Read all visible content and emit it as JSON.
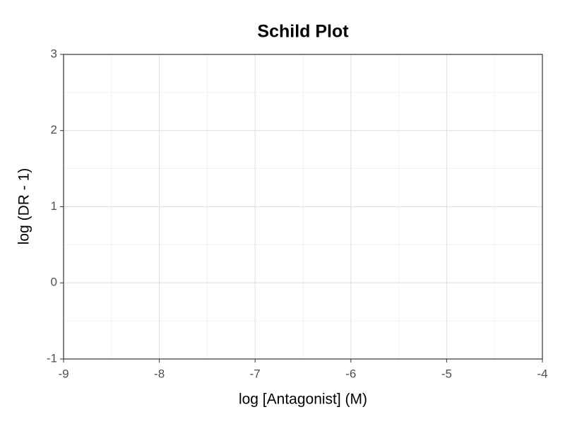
{
  "chart_data": {
    "type": "scatter",
    "title": "Schild Plot",
    "x_label": "log [Antagonist] (M)",
    "y_label": "log (DR - 1)",
    "xlim": [
      -9,
      -4
    ],
    "ylim": [
      -1,
      3
    ],
    "xticks": [
      -9,
      -8,
      -7,
      -6,
      -5,
      -4
    ],
    "yticks": [
      -1,
      0,
      1,
      2,
      3
    ],
    "grid": true
  }
}
